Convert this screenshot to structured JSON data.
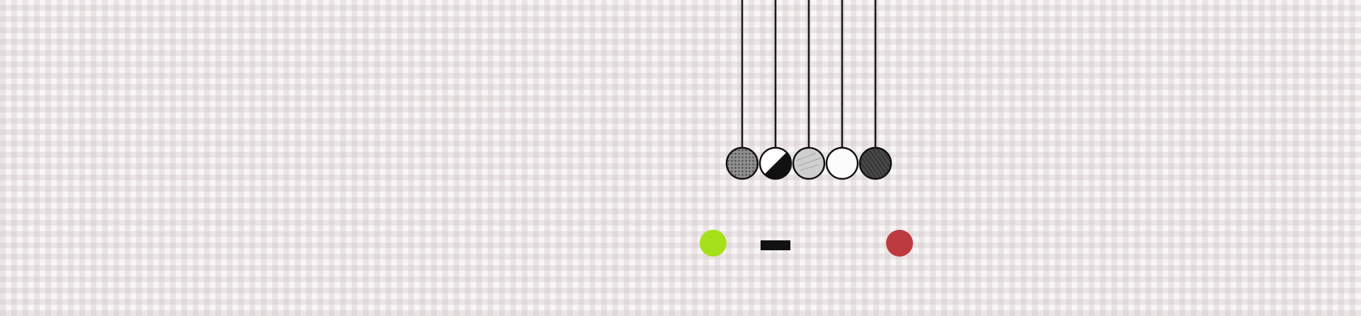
{
  "cradle": {
    "balls": [
      {
        "name": "dotted-ball",
        "pattern": "dots",
        "fill": "#8f8f8f"
      },
      {
        "name": "half-split-ball",
        "pattern": "half",
        "fill": "#ffffff",
        "accent": "#111111"
      },
      {
        "name": "light-gray-ball",
        "pattern": "scribble",
        "fill": "#cfcfcf"
      },
      {
        "name": "white-ball",
        "pattern": "plain",
        "fill": "#fcfcfc"
      },
      {
        "name": "hatched-ball",
        "pattern": "hatch",
        "fill": "#333333"
      }
    ]
  },
  "controls": {
    "start": {
      "color": "#a6e01a",
      "icon": "green-dot-icon"
    },
    "dash": {
      "color": "#111111",
      "icon": "dash-icon"
    },
    "stop": {
      "color": "#bd3b3f",
      "icon": "red-dot-icon"
    }
  }
}
